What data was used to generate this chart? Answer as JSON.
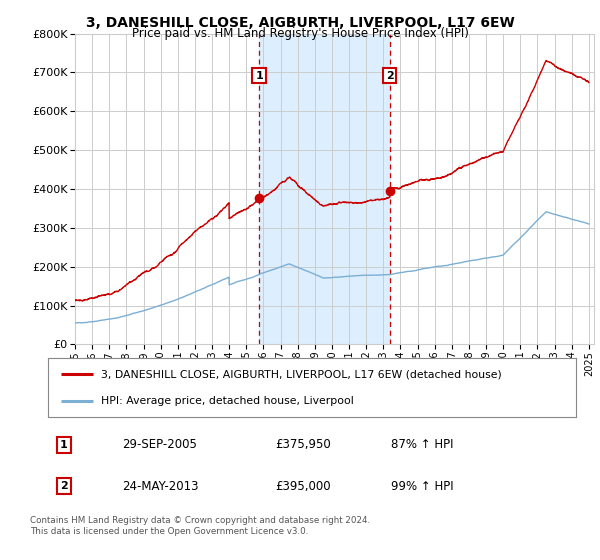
{
  "title1": "3, DANESHILL CLOSE, AIGBURTH, LIVERPOOL, L17 6EW",
  "title2": "Price paid vs. HM Land Registry's House Price Index (HPI)",
  "sale1_date": "29-SEP-2005",
  "sale1_price": 375950,
  "sale2_date": "24-MAY-2013",
  "sale2_price": 395000,
  "legend1": "3, DANESHILL CLOSE, AIGBURTH, LIVERPOOL, L17 6EW (detached house)",
  "legend2": "HPI: Average price, detached house, Liverpool",
  "footnote": "Contains HM Land Registry data © Crown copyright and database right 2024.\nThis data is licensed under the Open Government Licence v3.0.",
  "red_color": "#cc0000",
  "blue_color": "#7bafd4",
  "shade_color": "#ddeeff",
  "background": "#ffffff",
  "grid_color": "#cccccc",
  "ylim": [
    0,
    800000
  ],
  "yticks": [
    0,
    100000,
    200000,
    300000,
    400000,
    500000,
    600000,
    700000,
    800000
  ],
  "sale1_year_f": 2005.75,
  "sale2_year_f": 2013.38
}
